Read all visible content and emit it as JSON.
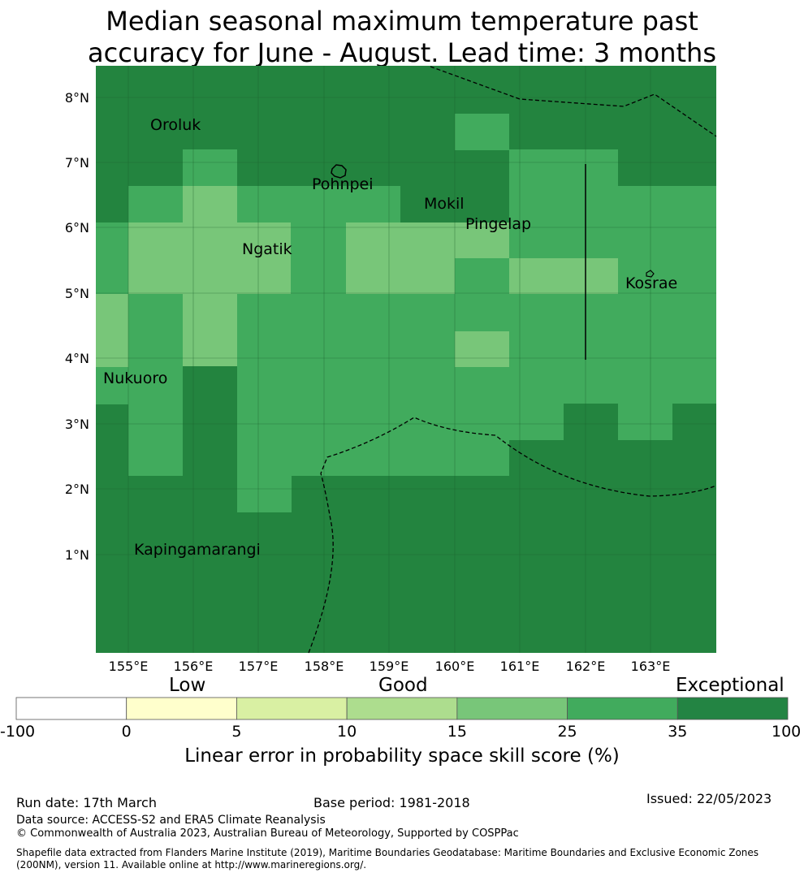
{
  "title": {
    "line1": "Median seasonal maximum temperature past",
    "line2": "accuracy for June - August. Lead time: 3 months"
  },
  "map": {
    "lon_labels": [
      "155°E",
      "156°E",
      "157°E",
      "158°E",
      "159°E",
      "160°E",
      "161°E",
      "162°E",
      "163°E"
    ],
    "lat_labels": [
      "1°N",
      "2°N",
      "3°N",
      "4°N",
      "5°N",
      "6°N",
      "7°N",
      "8°N"
    ],
    "places": [
      "Oroluk",
      "Pohnpei",
      "Mokil",
      "Pingelap",
      "Ngatik",
      "Kosrae",
      "Nukuoro",
      "Kapingamarangi"
    ],
    "grid_lines": true,
    "colors": {
      "dark": "#23843f",
      "mid": "#41ab5d",
      "light": "#78c679"
    },
    "cell_rows": [
      "ddddddddddddddddddddddddddddddddddd",
      "ddddddddddddddddddddddddddddddddddd",
      "dddddddddddddddddddddddddddddddddddd",
      "dddddddddddddddddddddddddddddddddddd",
      "ddddddddddddddddddddddddddddddddddd"
    ]
  },
  "colorbar": {
    "words": {
      "low": "Low",
      "good": "Good",
      "exceptional": "Exceptional"
    },
    "ticks": [
      "-100",
      "0",
      "5",
      "10",
      "15",
      "25",
      "35",
      "100"
    ],
    "colors": [
      "#ffffff",
      "#ffffcc",
      "#d9f0a3",
      "#addd8e",
      "#78c679",
      "#41ab5d",
      "#238443"
    ],
    "xlabel": "Linear error in probability space skill score (%)"
  },
  "footer": {
    "run_date": "Run date: 17th March",
    "base_period": "Base period: 1981-2018",
    "issued": "Issued: 22/05/2023",
    "data_source": "Data source: ACCESS-S2 and ERA5 Climate Reanalysis",
    "copyright": "© Commonwealth of Australia 2023, Australian Bureau of Meteorology, Supported by COSPPac",
    "shapefile": "Shapefile data extracted from Flanders Marine Institute (2019), Maritime Boundaries Geodatabase: Maritime Boundaries and Exclusive Economic Zones (200NM), version 11. Available online at http://www.marineregions.org/."
  }
}
